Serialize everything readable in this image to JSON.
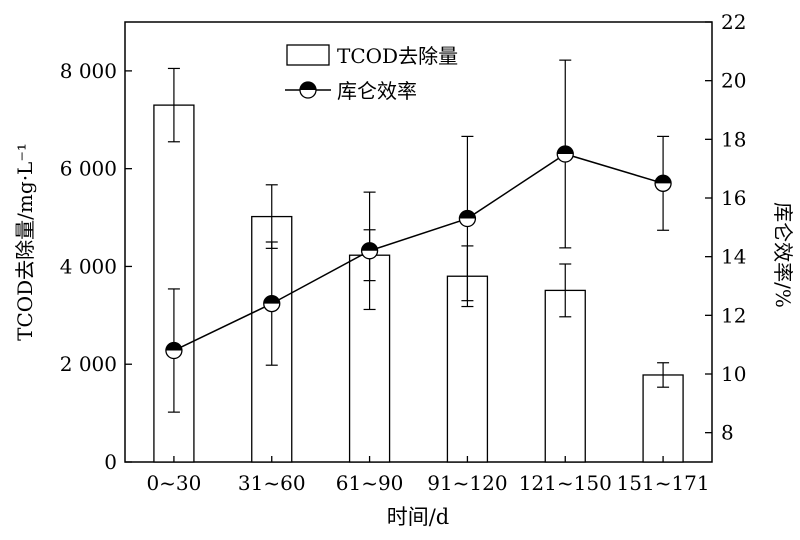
{
  "chart_data": {
    "type": "bar",
    "xlabel": "时间/d",
    "ylabel": "TCOD去除量/mg·L⁻¹",
    "y2label": "库仑效率/%",
    "categories": [
      "0~30",
      "31~60",
      "61~90",
      "91~120",
      "121~150",
      "151~171"
    ],
    "ylim": [
      0,
      9000
    ],
    "y_ticks": [
      0,
      2000,
      4000,
      6000,
      8000
    ],
    "y_tick_labels": [
      "0",
      "2 000",
      "4 000",
      "6 000",
      "8 000"
    ],
    "y2lim": [
      7,
      22
    ],
    "y2_ticks": [
      8,
      10,
      12,
      14,
      16,
      18,
      20,
      22
    ],
    "y2_tick_labels": [
      "8",
      "10",
      "12",
      "14",
      "16",
      "18",
      "20",
      "22"
    ],
    "legend_position": "top-center",
    "grid": false,
    "series": [
      {
        "name": "TCOD去除量",
        "kind": "bar",
        "axis": "left",
        "values": [
          7300,
          5020,
          4230,
          3800,
          3510,
          1780
        ],
        "errors": [
          750,
          650,
          520,
          620,
          540,
          250
        ]
      },
      {
        "name": "库仑效率",
        "kind": "line",
        "axis": "right",
        "values": [
          10.8,
          12.4,
          14.2,
          15.3,
          17.5,
          16.5
        ],
        "errors": [
          2.1,
          2.1,
          2.0,
          2.8,
          3.2,
          1.6
        ]
      }
    ]
  }
}
